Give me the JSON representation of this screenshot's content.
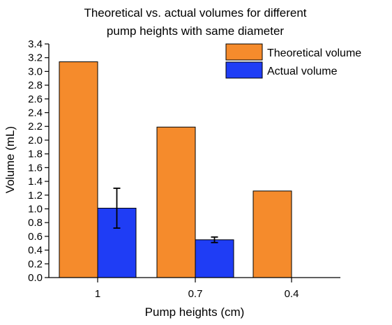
{
  "chart_data": {
    "type": "bar",
    "title_lines": [
      "Theoretical vs. actual volumes for different",
      "pump heights with same diameter"
    ],
    "xlabel": "Pump heights (cm)",
    "ylabel": "Volume (mL)",
    "categories": [
      "1",
      "0.7",
      "0.4"
    ],
    "ylim": [
      0,
      3.4
    ],
    "ytick_step": 0.2,
    "yticks": [
      "0.0",
      "0.2",
      "0.4",
      "0.6",
      "0.8",
      "1.0",
      "1.2",
      "1.4",
      "1.6",
      "1.8",
      "2.0",
      "2.2",
      "2.4",
      "2.6",
      "2.8",
      "3.0",
      "3.2",
      "3.4"
    ],
    "grid": false,
    "legend_position": "top-right",
    "series": [
      {
        "name": "Theoretical volume",
        "color": "#f58b2c",
        "values": [
          3.14,
          2.19,
          1.26
        ],
        "errors": [
          null,
          null,
          null
        ]
      },
      {
        "name": "Actual volume",
        "color": "#1f3df5",
        "values": [
          1.01,
          0.55,
          null
        ],
        "errors": [
          0.29,
          0.04,
          null
        ]
      }
    ]
  }
}
